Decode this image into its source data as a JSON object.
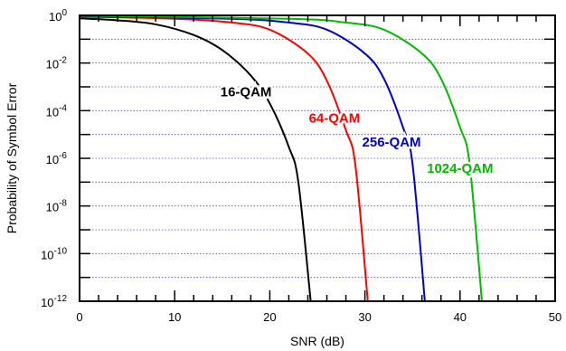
{
  "chart_data": {
    "type": "line",
    "xlabel": "SNR (dB)",
    "ylabel": "Probability of Symbol Error",
    "xlim": [
      0,
      50
    ],
    "ylim": [
      1e-12,
      1
    ],
    "yscale": "log",
    "x_ticks": [
      0,
      10,
      20,
      30,
      40,
      50
    ],
    "x_tick_labels": [
      "0",
      "10",
      "20",
      "30",
      "40",
      "50"
    ],
    "y_tick_labels": [
      {
        "value": 1,
        "base": "10",
        "exp": "0"
      },
      {
        "value": 0.01,
        "base": "10",
        "exp": "-2"
      },
      {
        "value": 0.0001,
        "base": "10",
        "exp": "-4"
      },
      {
        "value": 1e-06,
        "base": "10",
        "exp": "-6"
      },
      {
        "value": 1e-08,
        "base": "10",
        "exp": "-8"
      },
      {
        "value": 1e-10,
        "base": "10",
        "exp": "-10"
      },
      {
        "value": 1e-12,
        "base": "10",
        "exp": "-12"
      }
    ],
    "grid": "horizontal-dotted",
    "series": [
      {
        "name": "16-QAM",
        "color": "#000000",
        "x": [
          0,
          4,
          8,
          12,
          15,
          18,
          20,
          22,
          23,
          24.3
        ],
        "y": [
          0.75,
          0.62,
          0.42,
          0.15,
          0.035,
          0.003,
          0.0002,
          3e-06,
          1e-07,
          1e-12
        ]
      },
      {
        "name": "64-QAM",
        "color": "#ff0000",
        "x": [
          0,
          10,
          16,
          20,
          24,
          26,
          28,
          29,
          30.3
        ],
        "y": [
          0.88,
          0.72,
          0.5,
          0.25,
          0.025,
          0.0018,
          1.5e-05,
          5e-07,
          1e-12
        ]
      },
      {
        "name": "256-QAM",
        "color": "#0000cc",
        "x": [
          0,
          16,
          22,
          26,
          30,
          32,
          34,
          35,
          36.3
        ],
        "y": [
          0.94,
          0.72,
          0.5,
          0.25,
          0.025,
          0.0022,
          2e-05,
          6e-07,
          1e-12
        ]
      },
      {
        "name": "1024-QAM",
        "color": "#00bb00",
        "x": [
          0,
          22,
          28,
          32,
          36,
          38,
          40,
          41,
          42.3
        ],
        "y": [
          0.97,
          0.72,
          0.5,
          0.25,
          0.025,
          0.0022,
          2e-05,
          6e-07,
          1e-12
        ]
      }
    ]
  }
}
